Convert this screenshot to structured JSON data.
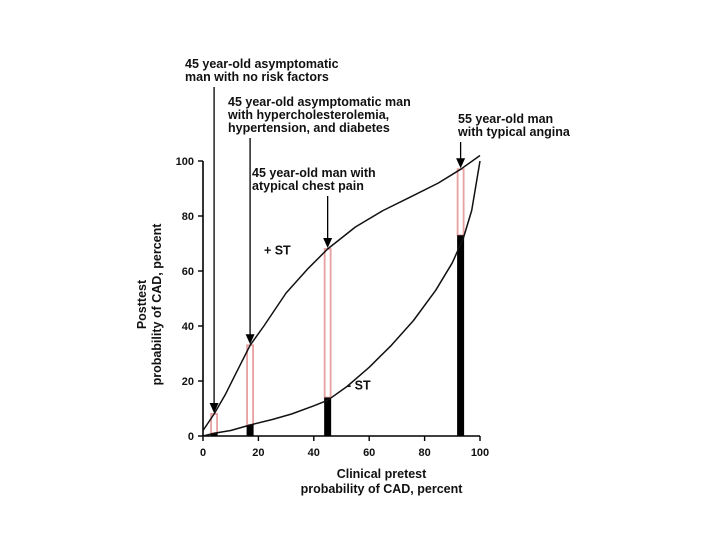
{
  "chart_data": {
    "type": "line",
    "xlabel_lines": [
      "Clinical pretest",
      "probability of CAD, percent"
    ],
    "ylabel_lines": [
      "Posttest",
      "probability of CAD, percent"
    ],
    "xlim": [
      0,
      100
    ],
    "ylim": [
      0,
      100
    ],
    "x_ticks": [
      0,
      20,
      40,
      60,
      80,
      100
    ],
    "y_ticks": [
      0,
      20,
      40,
      60,
      80,
      100
    ],
    "series": [
      {
        "name": "+ ST",
        "points": [
          [
            0,
            2
          ],
          [
            4,
            8
          ],
          [
            8,
            15
          ],
          [
            12,
            23
          ],
          [
            17,
            33
          ],
          [
            22,
            40
          ],
          [
            30,
            52
          ],
          [
            38,
            61
          ],
          [
            45,
            68
          ],
          [
            55,
            76
          ],
          [
            65,
            82
          ],
          [
            75,
            87
          ],
          [
            85,
            92
          ],
          [
            93,
            97
          ],
          [
            100,
            102
          ]
        ]
      },
      {
        "name": "- ST",
        "points": [
          [
            0,
            0
          ],
          [
            4,
            1
          ],
          [
            10,
            2
          ],
          [
            17,
            4
          ],
          [
            25,
            6
          ],
          [
            32,
            8
          ],
          [
            40,
            11
          ],
          [
            45,
            13
          ],
          [
            52,
            18
          ],
          [
            60,
            25
          ],
          [
            68,
            33
          ],
          [
            76,
            42
          ],
          [
            84,
            53
          ],
          [
            90,
            63
          ],
          [
            94,
            72
          ],
          [
            97,
            82
          ],
          [
            100,
            100
          ]
        ]
      }
    ],
    "bars": [
      {
        "x": 4,
        "low": 1,
        "high": 8
      },
      {
        "x": 17,
        "low": 4,
        "high": 33
      },
      {
        "x": 45,
        "low": 14,
        "high": 68
      },
      {
        "x": 93,
        "low": 73,
        "high": 97
      }
    ],
    "annotations": [
      {
        "target_x": 4,
        "target_y": 8,
        "lines": [
          "45 year-old asymptomatic",
          "man with no risk factors"
        ]
      },
      {
        "target_x": 17,
        "target_y": 33,
        "lines": [
          "45 year-old asymptomatic man",
          "with hypercholesterolemia,",
          "hypertension, and diabetes"
        ]
      },
      {
        "target_x": 45,
        "target_y": 68,
        "lines": [
          "45 year-old man with",
          "atypical chest pain"
        ]
      },
      {
        "target_x": 93,
        "target_y": 97,
        "lines": [
          "55 year-old man",
          "with typical angina"
        ]
      }
    ],
    "curve_labels": [
      {
        "text": "+ ST",
        "x": 22,
        "y": 66
      },
      {
        "text": "- ST",
        "x": 52,
        "y": 17
      }
    ],
    "colors": {
      "curve": "#111111",
      "bar_high": "#e8a0a0",
      "bar_low": "#000000"
    }
  }
}
